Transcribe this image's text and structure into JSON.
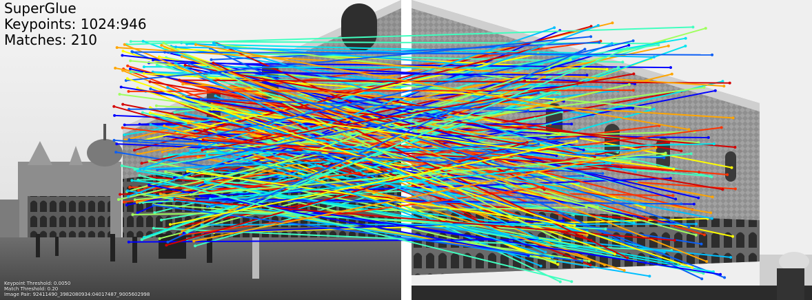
{
  "method": "SuperGlue",
  "keypoints_label": "Keypoints: 1024:946",
  "matches_label": "Matches: 210",
  "keypoint_threshold_label": "Keypoint Threshold: 0.0050",
  "match_threshold_label": "Match Threshold: 0.20",
  "image_pair_label": "Image Pair: 92411490_3982080934:04017487_9005602998",
  "images": {
    "left": "Grayscale photo of a Venetian square with a domed basilica and a gothic palace facade, crowd of people walking",
    "right": "Grayscale close-up photo of the same gothic palace facade with arched arcade and crowd below"
  },
  "match_colors": [
    "#0000ff",
    "#0b5ff5",
    "#00bfff",
    "#00e5ee",
    "#40ffbf",
    "#9fff5f",
    "#ffff00",
    "#ffa500",
    "#ff3300",
    "#d40000"
  ]
}
